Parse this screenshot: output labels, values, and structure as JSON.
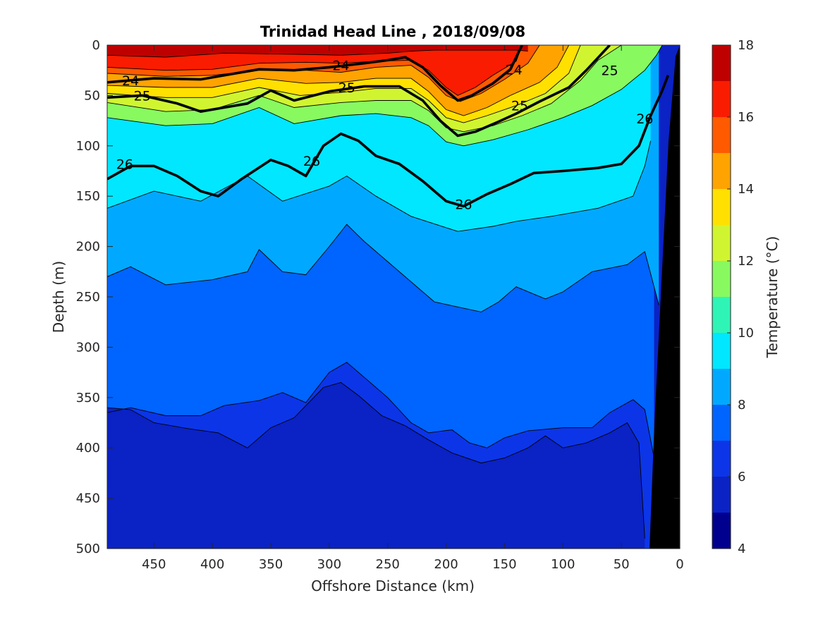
{
  "chart_data": {
    "type": "contourf",
    "title": "Trinidad Head Line , 2018/09/08",
    "xlabel": "Offshore Distance (km)",
    "ylabel": "Depth (m)",
    "xlim": [
      490,
      0
    ],
    "ylim": [
      0,
      500
    ],
    "x_ticks": [
      450,
      400,
      350,
      300,
      250,
      200,
      150,
      100,
      50,
      0
    ],
    "y_ticks": [
      0,
      50,
      100,
      150,
      200,
      250,
      300,
      350,
      400,
      450,
      500
    ],
    "x_direction": "reversed",
    "y_direction": "reversed",
    "colorbar": {
      "label": "Temperature (°C)",
      "range": [
        4,
        18
      ],
      "ticks": [
        4,
        6,
        8,
        10,
        12,
        14,
        16,
        18
      ],
      "levels": [
        {
          "from": 4,
          "to": 5,
          "color": "#00008f"
        },
        {
          "from": 5,
          "to": 6,
          "color": "#0b22c4"
        },
        {
          "from": 6,
          "to": 7,
          "color": "#0c35e8"
        },
        {
          "from": 7,
          "to": 8,
          "color": "#0064ff"
        },
        {
          "from": 8,
          "to": 9,
          "color": "#00a9ff"
        },
        {
          "from": 9,
          "to": 10,
          "color": "#00e7ff"
        },
        {
          "from": 10,
          "to": 11,
          "color": "#2ef5b6"
        },
        {
          "from": 11,
          "to": 12,
          "color": "#88fa60"
        },
        {
          "from": 12,
          "to": 13,
          "color": "#d0f530"
        },
        {
          "from": 13,
          "to": 14,
          "color": "#ffe000"
        },
        {
          "from": 14,
          "to": 15,
          "color": "#ffa300"
        },
        {
          "from": 15,
          "to": 16,
          "color": "#ff5a00"
        },
        {
          "from": 16,
          "to": 17,
          "color": "#fa1c00"
        },
        {
          "from": 17,
          "to": 18,
          "color": "#bf0000"
        }
      ]
    },
    "temperature_isotherms": [
      {
        "temp": 17,
        "points": [
          [
            490,
            10
          ],
          [
            440,
            12
          ],
          [
            390,
            8
          ],
          [
            330,
            9
          ],
          [
            290,
            10
          ],
          [
            250,
            8
          ],
          [
            230,
            6
          ],
          [
            210,
            5
          ],
          [
            170,
            5
          ],
          [
            140,
            5
          ],
          [
            130,
            6
          ]
        ]
      },
      {
        "temp": 16,
        "points": [
          [
            490,
            22
          ],
          [
            440,
            25
          ],
          [
            400,
            24
          ],
          [
            360,
            18
          ],
          [
            320,
            17
          ],
          [
            290,
            18
          ],
          [
            260,
            16
          ],
          [
            230,
            15
          ],
          [
            215,
            25
          ],
          [
            200,
            42
          ],
          [
            190,
            50
          ],
          [
            175,
            42
          ],
          [
            160,
            30
          ],
          [
            140,
            16
          ],
          [
            135,
            0
          ]
        ]
      },
      {
        "temp": 15,
        "points": [
          [
            490,
            28
          ],
          [
            440,
            31
          ],
          [
            400,
            30
          ],
          [
            360,
            25
          ],
          [
            320,
            25
          ],
          [
            290,
            27
          ],
          [
            260,
            22
          ],
          [
            230,
            20
          ],
          [
            215,
            32
          ],
          [
            200,
            50
          ],
          [
            188,
            56
          ],
          [
            170,
            48
          ],
          [
            150,
            34
          ],
          [
            130,
            18
          ],
          [
            120,
            0
          ]
        ]
      },
      {
        "temp": 14,
        "points": [
          [
            490,
            40
          ],
          [
            440,
            42
          ],
          [
            400,
            42
          ],
          [
            360,
            33
          ],
          [
            320,
            38
          ],
          [
            290,
            37
          ],
          [
            260,
            33
          ],
          [
            230,
            33
          ],
          [
            215,
            46
          ],
          [
            200,
            64
          ],
          [
            185,
            70
          ],
          [
            165,
            62
          ],
          [
            145,
            50
          ],
          [
            120,
            37
          ],
          [
            105,
            22
          ],
          [
            95,
            0
          ]
        ]
      },
      {
        "temp": 13,
        "points": [
          [
            490,
            48
          ],
          [
            440,
            52
          ],
          [
            400,
            52
          ],
          [
            360,
            42
          ],
          [
            325,
            50
          ],
          [
            290,
            47
          ],
          [
            260,
            43
          ],
          [
            230,
            43
          ],
          [
            215,
            55
          ],
          [
            200,
            72
          ],
          [
            185,
            77
          ],
          [
            165,
            70
          ],
          [
            140,
            60
          ],
          [
            115,
            48
          ],
          [
            95,
            28
          ],
          [
            85,
            0
          ]
        ]
      },
      {
        "temp": 12,
        "points": [
          [
            490,
            57
          ],
          [
            440,
            66
          ],
          [
            400,
            64
          ],
          [
            360,
            50
          ],
          [
            330,
            62
          ],
          [
            290,
            57
          ],
          [
            260,
            55
          ],
          [
            230,
            55
          ],
          [
            215,
            65
          ],
          [
            200,
            82
          ],
          [
            185,
            86
          ],
          [
            160,
            80
          ],
          [
            135,
            70
          ],
          [
            110,
            58
          ],
          [
            85,
            35
          ],
          [
            70,
            15
          ],
          [
            50,
            0
          ]
        ]
      },
      {
        "temp": 11,
        "points": [
          [
            490,
            72
          ],
          [
            440,
            80
          ],
          [
            400,
            78
          ],
          [
            360,
            62
          ],
          [
            330,
            78
          ],
          [
            290,
            70
          ],
          [
            260,
            68
          ],
          [
            230,
            72
          ],
          [
            215,
            80
          ],
          [
            200,
            96
          ],
          [
            185,
            100
          ],
          [
            160,
            94
          ],
          [
            130,
            84
          ],
          [
            100,
            72
          ],
          [
            75,
            60
          ],
          [
            50,
            44
          ],
          [
            30,
            25
          ],
          [
            20,
            10
          ],
          [
            15,
            0
          ]
        ]
      },
      {
        "temp": 9,
        "points": [
          [
            490,
            162
          ],
          [
            450,
            145
          ],
          [
            410,
            155
          ],
          [
            370,
            130
          ],
          [
            340,
            155
          ],
          [
            300,
            140
          ],
          [
            285,
            130
          ],
          [
            260,
            150
          ],
          [
            230,
            170
          ],
          [
            190,
            185
          ],
          [
            160,
            180
          ],
          [
            140,
            175
          ],
          [
            110,
            170
          ],
          [
            70,
            162
          ],
          [
            40,
            150
          ],
          [
            30,
            120
          ],
          [
            25,
            95
          ]
        ]
      },
      {
        "temp": 8,
        "points": [
          [
            490,
            230
          ],
          [
            470,
            220
          ],
          [
            440,
            238
          ],
          [
            400,
            233
          ],
          [
            370,
            225
          ],
          [
            360,
            203
          ],
          [
            340,
            225
          ],
          [
            320,
            228
          ],
          [
            300,
            200
          ],
          [
            285,
            178
          ],
          [
            270,
            195
          ],
          [
            250,
            215
          ],
          [
            230,
            235
          ],
          [
            210,
            255
          ],
          [
            190,
            260
          ],
          [
            170,
            265
          ],
          [
            155,
            255
          ],
          [
            140,
            240
          ],
          [
            115,
            252
          ],
          [
            100,
            245
          ],
          [
            75,
            225
          ],
          [
            45,
            218
          ],
          [
            30,
            205
          ],
          [
            18,
            258
          ]
        ]
      },
      {
        "temp": 7,
        "points": [
          [
            490,
            365
          ],
          [
            470,
            360
          ],
          [
            440,
            368
          ],
          [
            410,
            368
          ],
          [
            390,
            358
          ],
          [
            360,
            353
          ],
          [
            340,
            345
          ],
          [
            320,
            355
          ],
          [
            300,
            325
          ],
          [
            285,
            315
          ],
          [
            270,
            330
          ],
          [
            250,
            350
          ],
          [
            230,
            375
          ],
          [
            215,
            385
          ],
          [
            195,
            382
          ],
          [
            180,
            395
          ],
          [
            165,
            400
          ],
          [
            150,
            390
          ],
          [
            130,
            383
          ],
          [
            100,
            380
          ],
          [
            75,
            380
          ],
          [
            60,
            365
          ],
          [
            40,
            352
          ],
          [
            30,
            362
          ],
          [
            22,
            410
          ]
        ]
      },
      {
        "temp": 5,
        "points": [
          [
            490,
            360
          ],
          [
            470,
            362
          ],
          [
            450,
            375
          ],
          [
            420,
            381
          ],
          [
            395,
            385
          ],
          [
            370,
            400
          ],
          [
            350,
            380
          ],
          [
            330,
            370
          ],
          [
            305,
            340
          ],
          [
            290,
            335
          ],
          [
            275,
            348
          ],
          [
            255,
            368
          ],
          [
            235,
            378
          ],
          [
            215,
            392
          ],
          [
            195,
            405
          ],
          [
            170,
            415
          ],
          [
            150,
            410
          ],
          [
            130,
            400
          ],
          [
            115,
            388
          ],
          [
            100,
            400
          ],
          [
            80,
            395
          ],
          [
            60,
            385
          ],
          [
            45,
            375
          ],
          [
            35,
            395
          ],
          [
            30,
            490
          ]
        ]
      }
    ],
    "density_contours": [
      {
        "label": "24",
        "points": [
          [
            490,
            37
          ],
          [
            450,
            33
          ],
          [
            410,
            34
          ],
          [
            380,
            28
          ],
          [
            360,
            24
          ],
          [
            330,
            25
          ],
          [
            300,
            22
          ],
          [
            270,
            18
          ],
          [
            250,
            15
          ],
          [
            235,
            12
          ],
          [
            220,
            22
          ],
          [
            205,
            40
          ],
          [
            190,
            55
          ],
          [
            178,
            50
          ],
          [
            160,
            38
          ],
          [
            145,
            24
          ],
          [
            135,
            0
          ]
        ],
        "label_at": [
          [
            470,
            35
          ],
          [
            290,
            20
          ],
          [
            142,
            24
          ]
        ]
      },
      {
        "label": "25",
        "points": [
          [
            490,
            52
          ],
          [
            460,
            50
          ],
          [
            430,
            58
          ],
          [
            410,
            66
          ],
          [
            390,
            62
          ],
          [
            370,
            58
          ],
          [
            350,
            45
          ],
          [
            330,
            55
          ],
          [
            300,
            46
          ],
          [
            270,
            41
          ],
          [
            240,
            41
          ],
          [
            220,
            55
          ],
          [
            205,
            75
          ],
          [
            190,
            90
          ],
          [
            175,
            86
          ],
          [
            155,
            76
          ],
          [
            140,
            68
          ],
          [
            120,
            56
          ],
          [
            95,
            42
          ],
          [
            80,
            25
          ],
          [
            60,
            0
          ]
        ],
        "label_at": [
          [
            460,
            50
          ],
          [
            285,
            42
          ],
          [
            137,
            60
          ],
          [
            60,
            25
          ]
        ]
      },
      {
        "label": "26",
        "points": [
          [
            490,
            133
          ],
          [
            470,
            120
          ],
          [
            450,
            120
          ],
          [
            430,
            130
          ],
          [
            410,
            145
          ],
          [
            395,
            150
          ],
          [
            375,
            133
          ],
          [
            350,
            114
          ],
          [
            335,
            120
          ],
          [
            320,
            130
          ],
          [
            305,
            100
          ],
          [
            290,
            88
          ],
          [
            275,
            95
          ],
          [
            260,
            110
          ],
          [
            240,
            118
          ],
          [
            220,
            135
          ],
          [
            200,
            155
          ],
          [
            185,
            160
          ],
          [
            165,
            148
          ],
          [
            145,
            138
          ],
          [
            125,
            127
          ],
          [
            100,
            125
          ],
          [
            70,
            122
          ],
          [
            50,
            118
          ],
          [
            35,
            100
          ],
          [
            25,
            70
          ],
          [
            15,
            45
          ],
          [
            10,
            30
          ]
        ],
        "label_at": [
          [
            475,
            118
          ],
          [
            315,
            115
          ],
          [
            185,
            158
          ],
          [
            30,
            73
          ]
        ]
      }
    ]
  }
}
